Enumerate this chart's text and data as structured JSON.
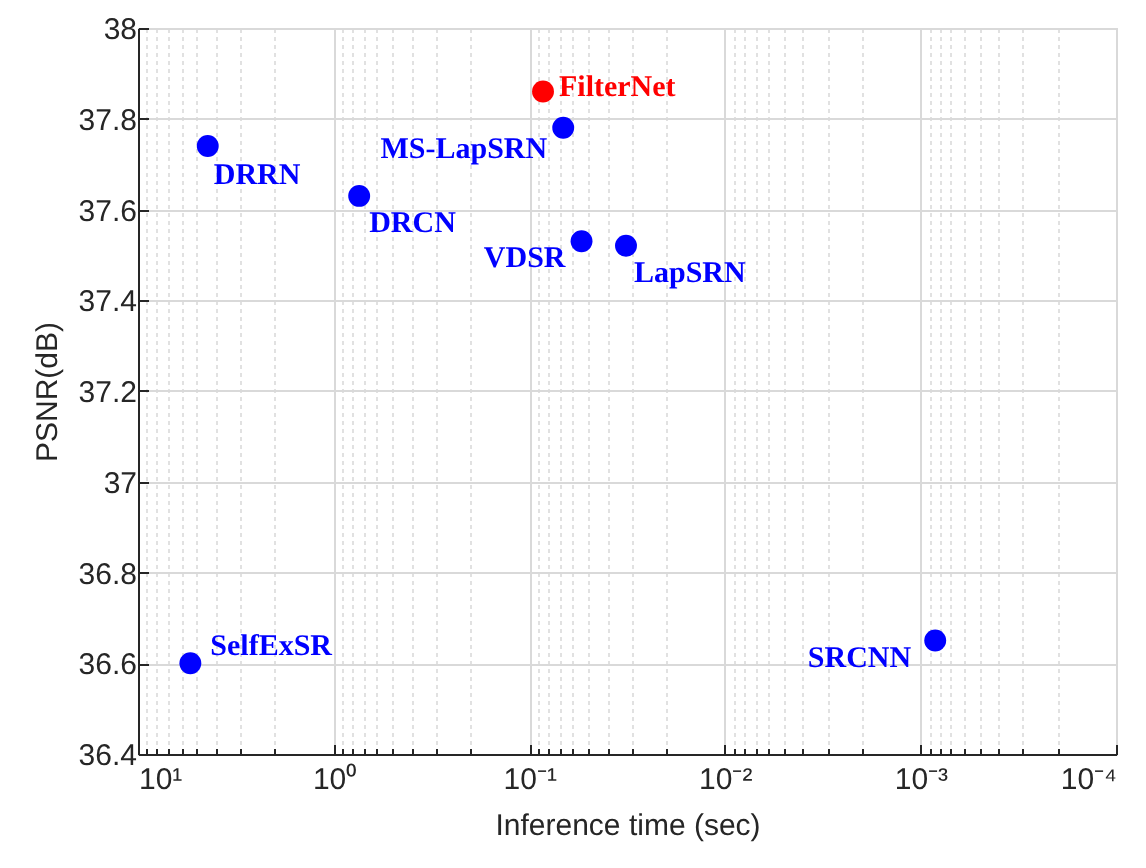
{
  "chart_data": {
    "type": "scatter",
    "xlabel": "Inference time (sec)",
    "ylabel": "PSNR(dB)",
    "log": "x",
    "xlim": [
      10,
      0.0001
    ],
    "xticks": [
      {
        "value": 10,
        "label": "10¹"
      },
      {
        "value": 1,
        "label": "10⁰"
      },
      {
        "value": 0.1,
        "label": "10⁻¹"
      },
      {
        "value": 0.01,
        "label": "10⁻²"
      },
      {
        "value": 0.001,
        "label": "10⁻³"
      },
      {
        "value": 0.0001,
        "label": "10⁻⁴"
      }
    ],
    "ylim": [
      36.4,
      38
    ],
    "yticks": [
      36.4,
      36.6,
      36.8,
      37,
      37.2,
      37.4,
      37.6,
      37.8,
      38
    ],
    "grid": true,
    "marker": "circle",
    "series": [
      {
        "name": "FilterNet",
        "color": "#ff0000",
        "x": [
          0.085
        ],
        "values": [
          37.86
        ]
      },
      {
        "name": "MS-LapSRN",
        "color": "#0000ff",
        "x": [
          0.067
        ],
        "values": [
          37.78
        ]
      },
      {
        "name": "DRRN",
        "color": "#0000ff",
        "x": [
          4.4
        ],
        "values": [
          37.74
        ]
      },
      {
        "name": "DRCN",
        "color": "#0000ff",
        "x": [
          0.74
        ],
        "values": [
          37.63
        ]
      },
      {
        "name": "VDSR",
        "color": "#0000ff",
        "x": [
          0.054
        ],
        "values": [
          37.53
        ]
      },
      {
        "name": "LapSRN",
        "color": "#0000ff",
        "x": [
          0.032
        ],
        "values": [
          37.52
        ]
      },
      {
        "name": "SelfExSR",
        "color": "#0000ff",
        "x": [
          5.4
        ],
        "values": [
          36.6
        ]
      },
      {
        "name": "SRCNN",
        "color": "#0000ff",
        "x": [
          0.00084
        ],
        "values": [
          36.65
        ]
      }
    ]
  }
}
